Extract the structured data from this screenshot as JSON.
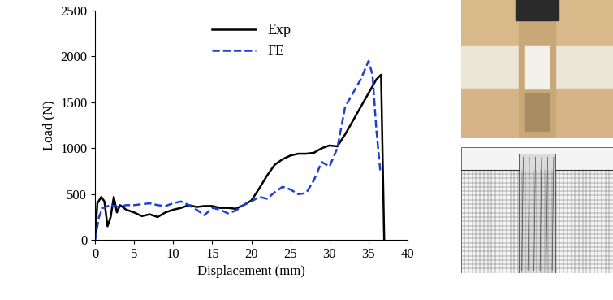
{
  "chart_data": {
    "type": "line",
    "x_label": "Displacement (mm)",
    "y_label": "Load (N)",
    "xlim": [
      0,
      40
    ],
    "xticks": [
      0,
      5,
      10,
      15,
      20,
      25,
      30,
      35,
      40
    ],
    "ylim": [
      0,
      2500
    ],
    "yticks": [
      0,
      500,
      1000,
      1500,
      2000,
      2500
    ],
    "grid": false,
    "legend": "upper center",
    "series": [
      {
        "name": "Exp",
        "color": "#000000",
        "line_style": "solid",
        "x": [
          0,
          0.3,
          0.8,
          1.2,
          1.6,
          2.0,
          2.4,
          2.8,
          3.2,
          4,
          5,
          6,
          7,
          8,
          9,
          10,
          11,
          12,
          13,
          14,
          15,
          16,
          17,
          18,
          19,
          20,
          21,
          22,
          23,
          24,
          25,
          26,
          27,
          28,
          29,
          30,
          31,
          32,
          33,
          34,
          35,
          36,
          36.6,
          37
        ],
        "values": [
          0,
          400,
          470,
          420,
          150,
          250,
          470,
          300,
          380,
          330,
          300,
          260,
          280,
          250,
          300,
          330,
          350,
          380,
          360,
          370,
          370,
          350,
          350,
          340,
          380,
          430,
          560,
          700,
          820,
          880,
          920,
          940,
          940,
          950,
          1000,
          1030,
          1020,
          1150,
          1300,
          1450,
          1600,
          1750,
          1800,
          0
        ]
      },
      {
        "name": "FE",
        "color": "#1f3fd0",
        "line_style": "dashed",
        "x": [
          0,
          0.5,
          1,
          2,
          3,
          4,
          5,
          6,
          7,
          8,
          9,
          10,
          11,
          12,
          13,
          14,
          15,
          16,
          17,
          18,
          19,
          20,
          21,
          22,
          23,
          24,
          25,
          26,
          27,
          28,
          29,
          30,
          31,
          32,
          33,
          34,
          35,
          35.5,
          36,
          36.5
        ],
        "values": [
          0,
          250,
          350,
          380,
          360,
          380,
          380,
          390,
          400,
          380,
          370,
          400,
          420,
          380,
          330,
          270,
          350,
          330,
          290,
          320,
          380,
          420,
          470,
          450,
          520,
          580,
          550,
          500,
          510,
          650,
          850,
          800,
          1000,
          1450,
          1600,
          1750,
          1950,
          1800,
          1200,
          750
        ]
      }
    ]
  }
}
